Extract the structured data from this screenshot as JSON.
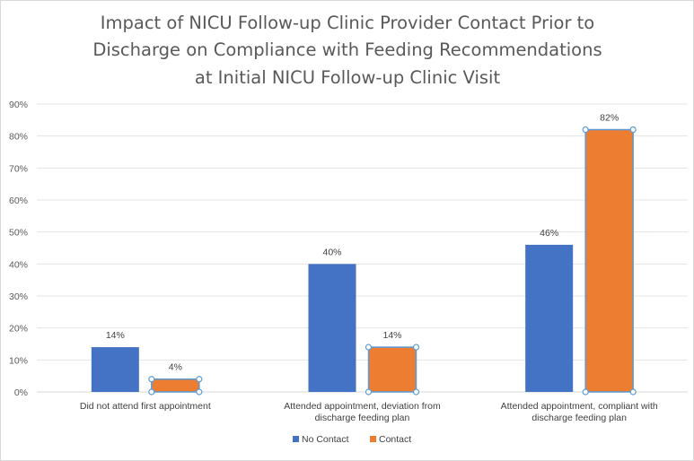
{
  "chart_data": {
    "type": "bar",
    "title_lines": [
      "Impact of NICU Follow-up Clinic Provider Contact Prior to",
      "Discharge on Compliance with Feeding Recommendations",
      "at Initial NICU Follow-up Clinic Visit"
    ],
    "categories": [
      [
        "Did not attend first appointment"
      ],
      [
        "Attended appointment, deviation from",
        "discharge feeding plan"
      ],
      [
        "Attended appointment, compliant with",
        "discharge feeding plan"
      ]
    ],
    "series": [
      {
        "name": "No Contact",
        "color": "#4472c4",
        "values": [
          14,
          40,
          46
        ],
        "labels": [
          "14%",
          "40%",
          "46%"
        ]
      },
      {
        "name": "Contact",
        "color": "#ed7d31",
        "values": [
          4,
          14,
          82
        ],
        "labels": [
          "4%",
          "14%",
          "82%"
        ]
      }
    ],
    "yticks": [
      "0%",
      "10%",
      "20%",
      "30%",
      "40%",
      "50%",
      "60%",
      "70%",
      "80%",
      "90%"
    ],
    "ylim": [
      0,
      90
    ],
    "grid": true,
    "legend": "bottom",
    "selected_series": "Contact"
  }
}
